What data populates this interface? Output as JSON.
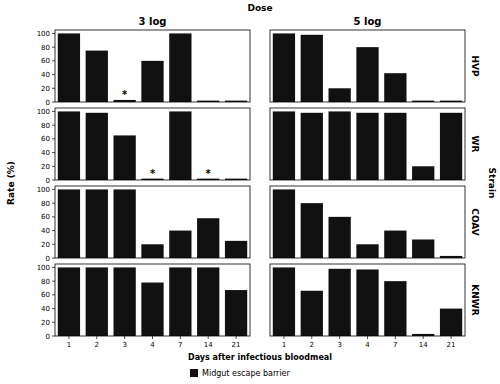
{
  "facets": {
    "title": "Dose",
    "columns": [
      "3 log",
      "5 log"
    ],
    "row_title": "Strain",
    "rows": [
      "HVP",
      "WR",
      "COAV",
      "KNWR"
    ],
    "x_label": "Days after infectious bloodmeal",
    "y_label": "Rate (%)",
    "legend_label": "Midgut escape barrier"
  },
  "chart_data": [
    {
      "type": "bar",
      "categories": [
        "1",
        "2",
        "3",
        "4",
        "7",
        "14",
        "21"
      ],
      "values": [
        100,
        75,
        3,
        60,
        100,
        2,
        2
      ],
      "color": "#111111",
      "ylim": [
        0,
        105
      ],
      "yticks": [
        0,
        20,
        40,
        60,
        80,
        100
      ],
      "grid": false,
      "tick_labels": "y",
      "annotations": [
        {
          "category": "3",
          "text": "*"
        }
      ]
    },
    {
      "type": "bar",
      "categories": [
        "1",
        "2",
        "3",
        "4",
        "7",
        "14",
        "21"
      ],
      "values": [
        100,
        98,
        20,
        80,
        42,
        2,
        2
      ],
      "color": "#111111",
      "ylim": [
        0,
        105
      ],
      "yticks": [
        0,
        20,
        40,
        60,
        80,
        100
      ],
      "grid": false,
      "tick_labels": false
    },
    {
      "type": "bar",
      "categories": [
        "1",
        "2",
        "3",
        "4",
        "7",
        "14",
        "21"
      ],
      "values": [
        100,
        98,
        65,
        2,
        100,
        2,
        2
      ],
      "color": "#111111",
      "ylim": [
        0,
        105
      ],
      "yticks": [
        0,
        20,
        40,
        60,
        80,
        100
      ],
      "grid": false,
      "tick_labels": "y",
      "annotations": [
        {
          "category": "4",
          "text": "*"
        },
        {
          "category": "14",
          "text": "*"
        }
      ]
    },
    {
      "type": "bar",
      "categories": [
        "1",
        "2",
        "3",
        "4",
        "7",
        "14",
        "21"
      ],
      "values": [
        100,
        98,
        100,
        98,
        98,
        20,
        98
      ],
      "color": "#111111",
      "ylim": [
        0,
        105
      ],
      "yticks": [
        0,
        20,
        40,
        60,
        80,
        100
      ],
      "grid": false,
      "tick_labels": false
    },
    {
      "type": "bar",
      "categories": [
        "1",
        "2",
        "3",
        "4",
        "7",
        "14",
        "21"
      ],
      "values": [
        100,
        100,
        100,
        20,
        40,
        58,
        25
      ],
      "color": "#111111",
      "ylim": [
        0,
        105
      ],
      "yticks": [
        0,
        20,
        40,
        60,
        80,
        100
      ],
      "grid": false,
      "tick_labels": "y"
    },
    {
      "type": "bar",
      "categories": [
        "1",
        "2",
        "3",
        "4",
        "7",
        "14",
        "21"
      ],
      "values": [
        100,
        80,
        60,
        20,
        40,
        27,
        3
      ],
      "color": "#111111",
      "ylim": [
        0,
        105
      ],
      "yticks": [
        0,
        20,
        40,
        60,
        80,
        100
      ],
      "grid": false,
      "tick_labels": false
    },
    {
      "type": "bar",
      "categories": [
        "1",
        "2",
        "3",
        "4",
        "7",
        "14",
        "21"
      ],
      "values": [
        100,
        100,
        100,
        78,
        100,
        100,
        67
      ],
      "color": "#111111",
      "ylim": [
        0,
        105
      ],
      "yticks": [
        0,
        20,
        40,
        60,
        80,
        100
      ],
      "grid": false,
      "tick_labels": true
    },
    {
      "type": "bar",
      "categories": [
        "1",
        "2",
        "3",
        "4",
        "7",
        "14",
        "21"
      ],
      "values": [
        100,
        66,
        98,
        97,
        80,
        3,
        40
      ],
      "color": "#111111",
      "ylim": [
        0,
        105
      ],
      "yticks": [
        0,
        20,
        40,
        60,
        80,
        100
      ],
      "grid": false,
      "tick_labels": "x"
    }
  ]
}
